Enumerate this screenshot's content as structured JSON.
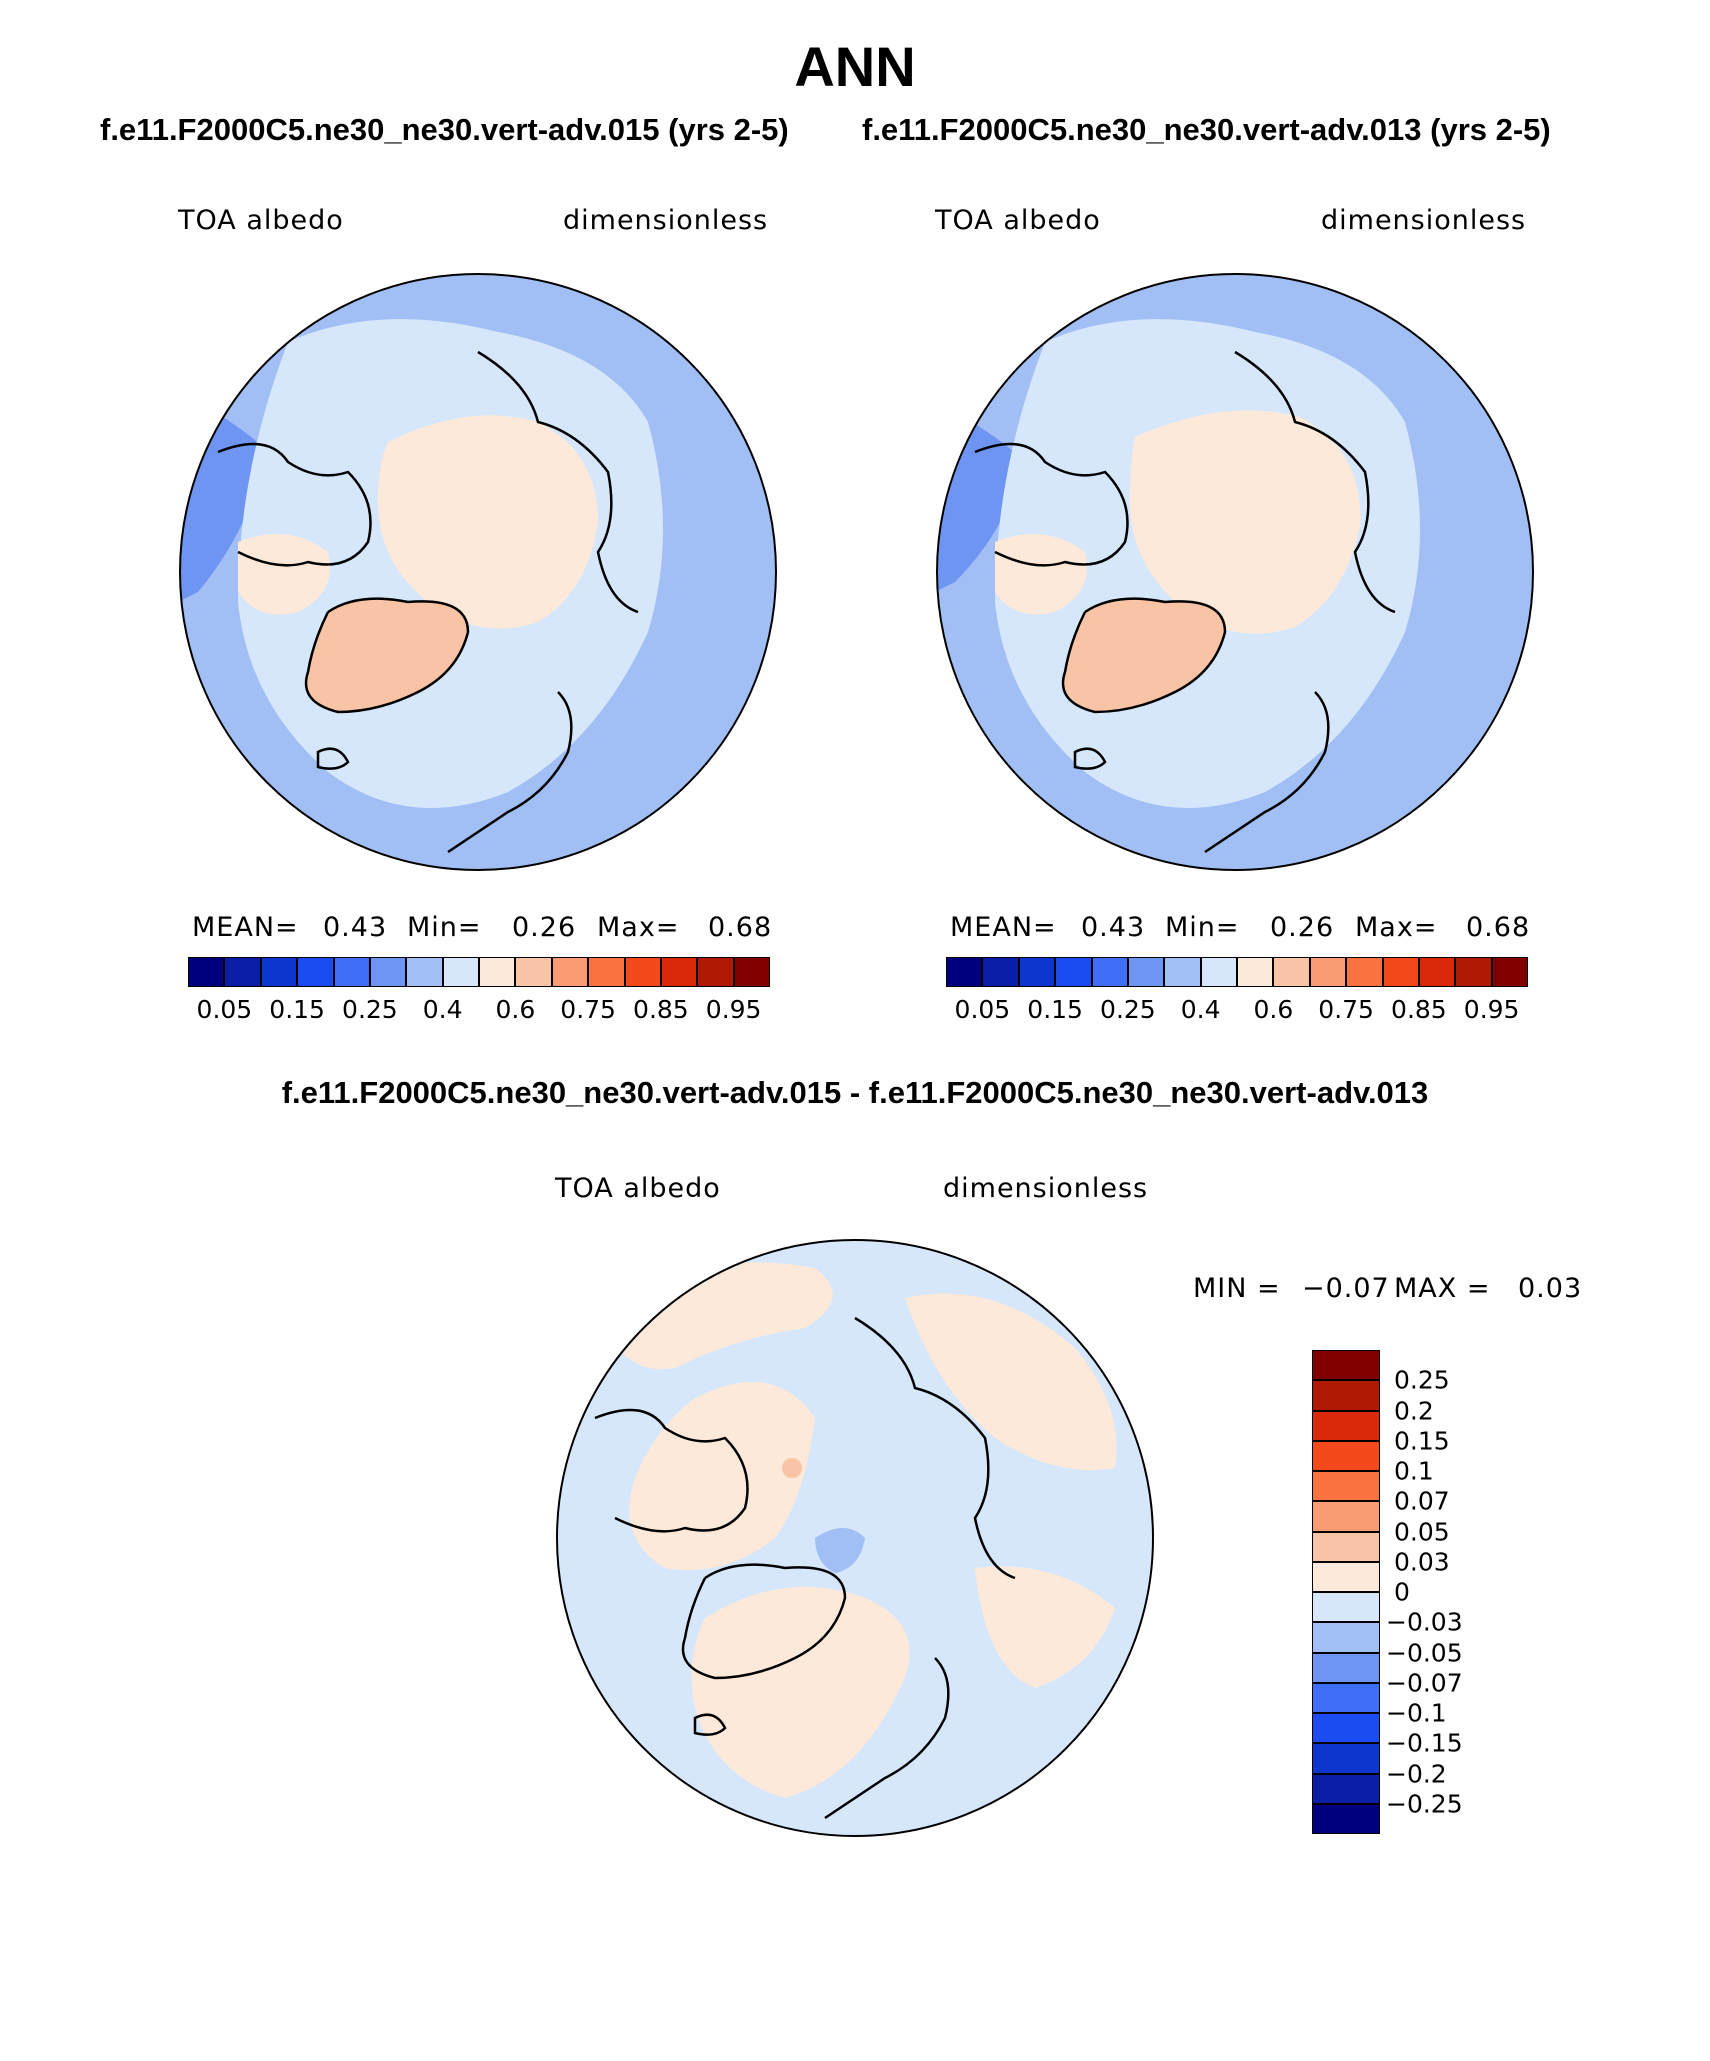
{
  "main_title": "ANN",
  "case_titles": {
    "left": "f.e11.F2000C5.ne30_ne30.vert-adv.015 (yrs 2-5)",
    "right": "f.e11.F2000C5.ne30_ne30.vert-adv.013 (yrs 2-5)"
  },
  "diff_title": "f.e11.F2000C5.ne30_ne30.vert-adv.015 - f.e11.F2000C5.ne30_ne30.vert-adv.013",
  "panels": {
    "left": {
      "variable": "TOA albedo",
      "units": "dimensionless",
      "stats": {
        "mean_label": "MEAN=",
        "mean": "0.43",
        "min_label": "Min=",
        "min": "0.26",
        "max_label": "Max=",
        "max": "0.68"
      }
    },
    "right": {
      "variable": "TOA albedo",
      "units": "dimensionless",
      "stats": {
        "mean_label": "MEAN=",
        "mean": "0.43",
        "min_label": "Min=",
        "min": "0.26",
        "max_label": "Max=",
        "max": "0.68"
      }
    },
    "diff": {
      "variable": "TOA albedo",
      "units": "dimensionless",
      "stats": {
        "min_label": "MIN =",
        "min": "−0.07",
        "max_label": "MAX =",
        "max": "0.03"
      }
    }
  },
  "colorbar_main": {
    "labels": [
      "0.05",
      "0.15",
      "0.25",
      "0.4",
      "0.6",
      "0.75",
      "0.85",
      "0.95"
    ],
    "colors": [
      "#00007f",
      "#0a1fa6",
      "#0d36cc",
      "#1a4cf2",
      "#3e6ef5",
      "#6f95f2",
      "#a2bff5",
      "#d6e7fb",
      "#fde9d9",
      "#f9c3a6",
      "#f99b73",
      "#f8733f",
      "#f4491b",
      "#d9290a",
      "#b01a05",
      "#800000"
    ]
  },
  "colorbar_diff": {
    "labels": [
      "0.25",
      "0.2",
      "0.15",
      "0.1",
      "0.07",
      "0.05",
      "0.03",
      "0",
      "−0.03",
      "−0.05",
      "−0.07",
      "−0.1",
      "−0.15",
      "−0.2",
      "−0.25"
    ],
    "colors": [
      "#800000",
      "#b01a05",
      "#d9290a",
      "#f4491b",
      "#f8733f",
      "#f99b73",
      "#f9c3a6",
      "#fde9d9",
      "#d6e7fb",
      "#a2bff5",
      "#6f95f2",
      "#3e6ef5",
      "#1a4cf2",
      "#0d36cc",
      "#0a1fa6",
      "#00007f"
    ]
  },
  "map_colors": {
    "light_blue": "#d6e7fb",
    "mid_blue": "#a2bff5",
    "deep_blue": "#6f95f2",
    "peach": "#fde9d9",
    "salmon": "#f9c3a6"
  }
}
